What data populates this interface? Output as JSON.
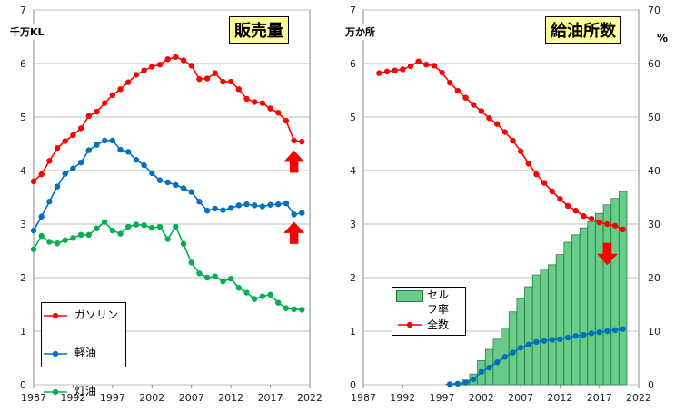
{
  "chart_data": [
    {
      "type": "line",
      "title": "販売量",
      "unit_label": "千万KL",
      "ylim": [
        0,
        7
      ],
      "yticks": [
        "0",
        "1",
        "2",
        "3",
        "4",
        "5",
        "6",
        "7"
      ],
      "xlim": [
        1987,
        2022
      ],
      "xticks": [
        "1987",
        "1992",
        "1997",
        "2002",
        "2007",
        "2012",
        "2017",
        "2022"
      ],
      "grid": true,
      "legend_position": "bottom-left",
      "arrows": [
        {
          "direction": "up",
          "color": "#ff0000",
          "series": "ガソリン"
        },
        {
          "direction": "up",
          "color": "#ff0000",
          "series": "軽油"
        }
      ],
      "series": [
        {
          "name": "ガソリン",
          "color": "#ff0000",
          "x": [
            1987,
            1988,
            1989,
            1990,
            1991,
            1992,
            1993,
            1994,
            1995,
            1996,
            1997,
            1998,
            1999,
            2000,
            2001,
            2002,
            2003,
            2004,
            2005,
            2006,
            2007,
            2008,
            2009,
            2010,
            2011,
            2012,
            2013,
            2014,
            2015,
            2016,
            2017,
            2018,
            2019,
            2020,
            2021
          ],
          "values": [
            3.8,
            3.93,
            4.18,
            4.42,
            4.55,
            4.66,
            4.79,
            5.02,
            5.1,
            5.26,
            5.41,
            5.52,
            5.65,
            5.79,
            5.87,
            5.94,
            5.98,
            6.08,
            6.12,
            6.06,
            5.96,
            5.71,
            5.72,
            5.82,
            5.66,
            5.66,
            5.52,
            5.34,
            5.28,
            5.26,
            5.16,
            5.08,
            4.93,
            4.56,
            4.54
          ]
        },
        {
          "name": "軽油",
          "color": "#0070c0",
          "x": [
            1987,
            1988,
            1989,
            1990,
            1991,
            1992,
            1993,
            1994,
            1995,
            1996,
            1997,
            1998,
            1999,
            2000,
            2001,
            2002,
            2003,
            2004,
            2005,
            2006,
            2007,
            2008,
            2009,
            2010,
            2011,
            2012,
            2013,
            2014,
            2015,
            2016,
            2017,
            2018,
            2019,
            2020,
            2021
          ],
          "values": [
            2.88,
            3.14,
            3.42,
            3.7,
            3.94,
            4.04,
            4.15,
            4.38,
            4.48,
            4.56,
            4.56,
            4.39,
            4.35,
            4.2,
            4.1,
            3.95,
            3.82,
            3.78,
            3.73,
            3.67,
            3.6,
            3.42,
            3.25,
            3.29,
            3.26,
            3.3,
            3.35,
            3.37,
            3.35,
            3.33,
            3.36,
            3.37,
            3.39,
            3.18,
            3.21
          ]
        },
        {
          "name": "灯油",
          "color": "#00b050",
          "x": [
            1987,
            1988,
            1989,
            1990,
            1991,
            1992,
            1993,
            1994,
            1995,
            1996,
            1997,
            1998,
            1999,
            2000,
            2001,
            2002,
            2003,
            2004,
            2005,
            2006,
            2007,
            2008,
            2009,
            2010,
            2011,
            2012,
            2013,
            2014,
            2015,
            2016,
            2017,
            2018,
            2019,
            2020,
            2021
          ],
          "values": [
            2.53,
            2.78,
            2.67,
            2.64,
            2.7,
            2.74,
            2.8,
            2.8,
            2.92,
            3.04,
            2.88,
            2.82,
            2.95,
            2.99,
            2.98,
            2.93,
            2.95,
            2.72,
            2.95,
            2.63,
            2.28,
            2.08,
            2.0,
            2.02,
            1.93,
            1.98,
            1.81,
            1.72,
            1.6,
            1.65,
            1.68,
            1.53,
            1.43,
            1.41,
            1.4
          ]
        }
      ]
    },
    {
      "type": "bar+line",
      "title": "給油所数",
      "unit_label_left": "万か所",
      "unit_label_right": "%",
      "ylim": [
        0,
        7
      ],
      "yticks": [
        "0",
        "1",
        "2",
        "3",
        "4",
        "5",
        "6",
        "7"
      ],
      "ylim_right": [
        0,
        70
      ],
      "yticks_right": [
        "0",
        "10",
        "20",
        "30",
        "40",
        "50",
        "60",
        "70"
      ],
      "xlim": [
        1987,
        2022
      ],
      "xticks": [
        "1987",
        "1992",
        "1997",
        "2002",
        "2007",
        "2012",
        "2017",
        "2022"
      ],
      "grid": true,
      "legend_position": "bottom-left",
      "arrows": [
        {
          "direction": "down",
          "color": "#ff0000",
          "series": "全数"
        }
      ],
      "bars": {
        "name": "セルフ率",
        "legend_lines": [
          "セル",
          "フ率"
        ],
        "color": "#66cc88",
        "axis": "right",
        "x": [
          1998,
          1999,
          2000,
          2001,
          2002,
          2003,
          2004,
          2005,
          2006,
          2007,
          2008,
          2009,
          2010,
          2011,
          2012,
          2013,
          2014,
          2015,
          2016,
          2017,
          2018,
          2019,
          2020
        ],
        "values": [
          0.1,
          0.3,
          0.9,
          2.0,
          4.5,
          6.6,
          8.5,
          10.6,
          13.6,
          16.1,
          18.3,
          20.5,
          21.6,
          22.4,
          24.3,
          26.6,
          28.0,
          29.3,
          30.4,
          32.0,
          33.6,
          34.8,
          36.1
        ]
      },
      "series": [
        {
          "name": "全数",
          "color": "#ff0000",
          "axis": "left",
          "x": [
            1989,
            1990,
            1991,
            1992,
            1993,
            1994,
            1995,
            1996,
            1997,
            1998,
            1999,
            2000,
            2001,
            2002,
            2003,
            2004,
            2005,
            2006,
            2007,
            2008,
            2009,
            2010,
            2011,
            2012,
            2013,
            2014,
            2015,
            2016,
            2017,
            2018,
            2019,
            2020
          ],
          "values": [
            5.82,
            5.85,
            5.87,
            5.89,
            5.95,
            6.04,
            5.98,
            5.96,
            5.83,
            5.64,
            5.49,
            5.36,
            5.23,
            5.11,
            4.98,
            4.87,
            4.72,
            4.56,
            4.36,
            4.13,
            3.93,
            3.77,
            3.61,
            3.47,
            3.34,
            3.25,
            3.15,
            3.1,
            3.03,
            3.0,
            2.97,
            2.9
          ]
        },
        {
          "name": "セルフ",
          "color": "#0070c0",
          "axis": "left",
          "x": [
            1998,
            1999,
            2000,
            2001,
            2002,
            2003,
            2004,
            2005,
            2006,
            2007,
            2008,
            2009,
            2010,
            2011,
            2012,
            2013,
            2014,
            2015,
            2016,
            2017,
            2018,
            2019,
            2020
          ],
          "values": [
            0.01,
            0.02,
            0.04,
            0.1,
            0.24,
            0.32,
            0.42,
            0.52,
            0.6,
            0.69,
            0.75,
            0.8,
            0.82,
            0.84,
            0.85,
            0.88,
            0.91,
            0.93,
            0.96,
            0.98,
            1.0,
            1.02,
            1.04
          ]
        }
      ]
    }
  ]
}
